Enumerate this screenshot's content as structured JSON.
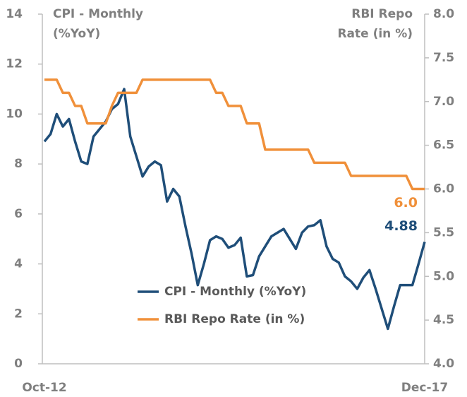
{
  "chart_data": {
    "type": "line",
    "ylabel": [
      "CPI - Monthly",
      "(%YoY)"
    ],
    "y2label": [
      "RBI Repo",
      "Rate (in %)"
    ],
    "categories": [
      "Oct-12",
      null,
      null,
      null,
      null,
      null,
      null,
      null,
      null,
      null,
      null,
      null,
      null,
      null,
      null,
      null,
      null,
      null,
      null,
      null,
      null,
      null,
      null,
      null,
      null,
      null,
      null,
      null,
      null,
      null,
      null,
      null,
      null,
      null,
      null,
      null,
      null,
      null,
      null,
      null,
      null,
      null,
      null,
      null,
      null,
      null,
      null,
      null,
      null,
      null,
      null,
      null,
      null,
      null,
      null,
      null,
      null,
      null,
      null,
      null,
      null,
      null,
      "Dec-17"
    ],
    "series": [
      {
        "name": "CPI - Monthly (%YoY)",
        "color": "#1f4e79",
        "axis": "y",
        "values": [
          8.9,
          9.2,
          10.0,
          9.5,
          9.8,
          8.9,
          8.1,
          8.0,
          9.1,
          9.4,
          9.7,
          10.2,
          10.4,
          11.0,
          9.1,
          8.3,
          7.5,
          7.9,
          8.1,
          7.95,
          6.5,
          7.0,
          6.7,
          5.5,
          4.4,
          3.15,
          4.0,
          4.95,
          5.1,
          5.0,
          4.65,
          4.75,
          5.05,
          3.5,
          3.55,
          4.3,
          4.7,
          5.1,
          5.25,
          5.4,
          5.0,
          4.6,
          5.25,
          5.5,
          5.55,
          5.75,
          4.7,
          4.2,
          4.05,
          3.5,
          3.3,
          3.0,
          3.45,
          3.75,
          3.0,
          2.2,
          1.4,
          2.3,
          3.15,
          3.15,
          3.15,
          4.0,
          4.88
        ],
        "value_labels": [
          null,
          null,
          null,
          null,
          null,
          null,
          null,
          null,
          null,
          null,
          null,
          null,
          null,
          null,
          null,
          null,
          null,
          null,
          null,
          null,
          null,
          null,
          null,
          null,
          null,
          null,
          null,
          null,
          null,
          null,
          null,
          null,
          null,
          null,
          null,
          null,
          null,
          null,
          null,
          null,
          null,
          null,
          null,
          null,
          null,
          null,
          null,
          null,
          null,
          null,
          null,
          null,
          null,
          null,
          null,
          null,
          null,
          null,
          null,
          null,
          null,
          null,
          "4.88"
        ]
      },
      {
        "name": "RBI Repo Rate (in %)",
        "color": "#f0903a",
        "axis": "y2",
        "values": [
          7.25,
          7.25,
          7.25,
          7.1,
          7.1,
          6.95,
          6.95,
          6.75,
          6.75,
          6.75,
          6.75,
          6.95,
          7.1,
          7.1,
          7.1,
          7.1,
          7.25,
          7.25,
          7.25,
          7.25,
          7.25,
          7.25,
          7.25,
          7.25,
          7.25,
          7.25,
          7.25,
          7.25,
          7.1,
          7.1,
          6.95,
          6.95,
          6.95,
          6.75,
          6.75,
          6.75,
          6.45,
          6.45,
          6.45,
          6.45,
          6.45,
          6.45,
          6.45,
          6.45,
          6.3,
          6.3,
          6.3,
          6.3,
          6.3,
          6.3,
          6.15,
          6.15,
          6.15,
          6.15,
          6.15,
          6.15,
          6.15,
          6.15,
          6.15,
          6.15,
          6.0,
          6.0,
          6.0
        ],
        "value_labels": [
          null,
          null,
          null,
          null,
          null,
          null,
          null,
          null,
          null,
          null,
          null,
          null,
          null,
          null,
          null,
          null,
          null,
          null,
          null,
          null,
          null,
          null,
          null,
          null,
          null,
          null,
          null,
          null,
          null,
          null,
          null,
          null,
          null,
          null,
          null,
          null,
          null,
          null,
          null,
          null,
          null,
          null,
          null,
          null,
          null,
          null,
          null,
          null,
          null,
          null,
          null,
          null,
          null,
          null,
          null,
          null,
          null,
          null,
          null,
          null,
          null,
          null,
          "6.0"
        ]
      }
    ],
    "ylim": [
      0,
      14
    ],
    "yticks": [
      0,
      2,
      4,
      6,
      8,
      10,
      12,
      14
    ],
    "y2lim": [
      4,
      8
    ],
    "y2ticks": [
      {
        "value": 4,
        "label": "4.0"
      },
      {
        "value": 4.5,
        "label": "4.5"
      },
      {
        "value": 5,
        "label": "5.0"
      },
      {
        "value": 5.5,
        "label": "5.5"
      },
      {
        "value": 6,
        "label": "6.0"
      },
      {
        "value": 6.5,
        "label": "6.5"
      },
      {
        "value": 7,
        "label": "7.0"
      },
      {
        "value": 7.5,
        "label": "7.5"
      },
      {
        "value": 8,
        "label": "8.0"
      }
    ],
    "grid": false
  }
}
